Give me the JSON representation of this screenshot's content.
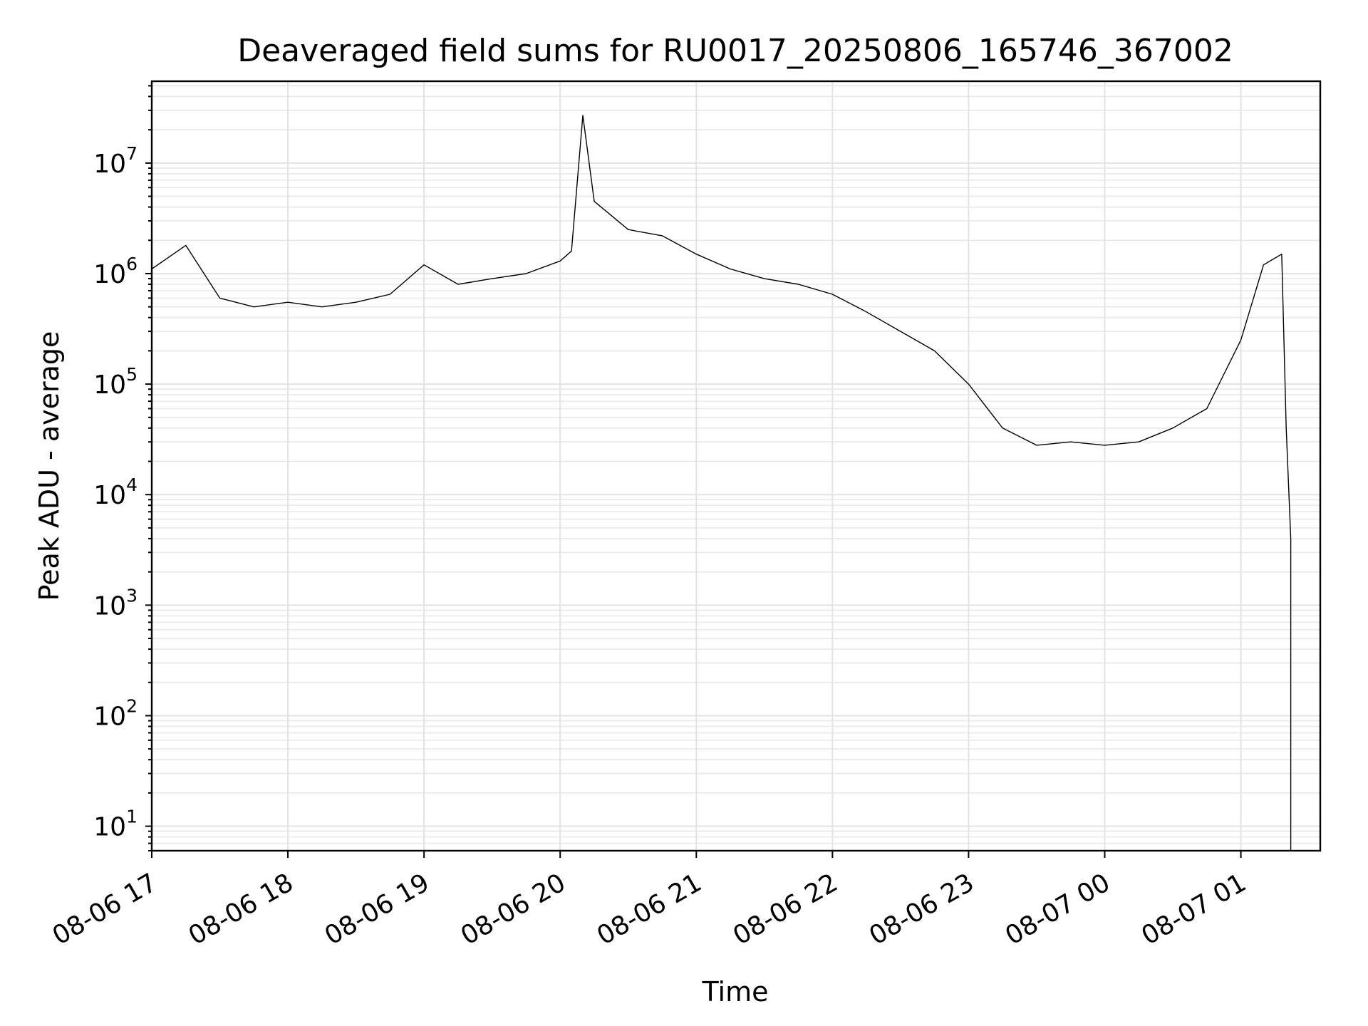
{
  "chart_data": {
    "type": "line",
    "title": "Deaveraged field sums for RU0017_20250806_165746_367002",
    "xlabel": "Time",
    "ylabel": "Peak ADU - average",
    "yscale": "log",
    "ylim": [
      6,
      55000000
    ],
    "xlim": [
      "2025-08-06 17:00",
      "2025-08-07 01:35"
    ],
    "grid": true,
    "x_ticks": [
      "08-06 17",
      "08-06 18",
      "08-06 19",
      "08-06 20",
      "08-06 21",
      "08-06 22",
      "08-06 23",
      "08-07 00",
      "08-07 01"
    ],
    "y_ticks": [
      {
        "base": "10",
        "exp": "1",
        "value": 10
      },
      {
        "base": "10",
        "exp": "2",
        "value": 100
      },
      {
        "base": "10",
        "exp": "3",
        "value": 1000
      },
      {
        "base": "10",
        "exp": "4",
        "value": 10000
      },
      {
        "base": "10",
        "exp": "5",
        "value": 100000
      },
      {
        "base": "10",
        "exp": "6",
        "value": 1000000
      },
      {
        "base": "10",
        "exp": "7",
        "value": 10000000
      }
    ],
    "series": [
      {
        "color": "#000000",
        "x": [
          "2025-08-06 17:00",
          "2025-08-06 17:15",
          "2025-08-06 17:30",
          "2025-08-06 17:45",
          "2025-08-06 18:00",
          "2025-08-06 18:15",
          "2025-08-06 18:30",
          "2025-08-06 18:45",
          "2025-08-06 19:00",
          "2025-08-06 19:15",
          "2025-08-06 19:30",
          "2025-08-06 19:45",
          "2025-08-06 20:00",
          "2025-08-06 20:05",
          "2025-08-06 20:10",
          "2025-08-06 20:15",
          "2025-08-06 20:30",
          "2025-08-06 20:45",
          "2025-08-06 21:00",
          "2025-08-06 21:15",
          "2025-08-06 21:30",
          "2025-08-06 21:45",
          "2025-08-06 22:00",
          "2025-08-06 22:15",
          "2025-08-06 22:30",
          "2025-08-06 22:45",
          "2025-08-06 23:00",
          "2025-08-06 23:15",
          "2025-08-06 23:30",
          "2025-08-06 23:45",
          "2025-08-07 00:00",
          "2025-08-07 00:15",
          "2025-08-07 00:30",
          "2025-08-07 00:45",
          "2025-08-07 01:00",
          "2025-08-07 01:10",
          "2025-08-07 01:18",
          "2025-08-07 01:20",
          "2025-08-07 01:22"
        ],
        "y": [
          1100000,
          1800000,
          600000,
          500000,
          550000,
          500000,
          550000,
          650000,
          1200000,
          800000,
          900000,
          1000000,
          1300000,
          1600000,
          27000000,
          4500000,
          2500000,
          2200000,
          1500000,
          1100000,
          900000,
          800000,
          650000,
          450000,
          300000,
          200000,
          100000,
          40000,
          28000,
          30000,
          28000,
          30000,
          40000,
          60000,
          250000,
          1200000,
          1500000,
          40000,
          4000
        ]
      }
    ]
  }
}
